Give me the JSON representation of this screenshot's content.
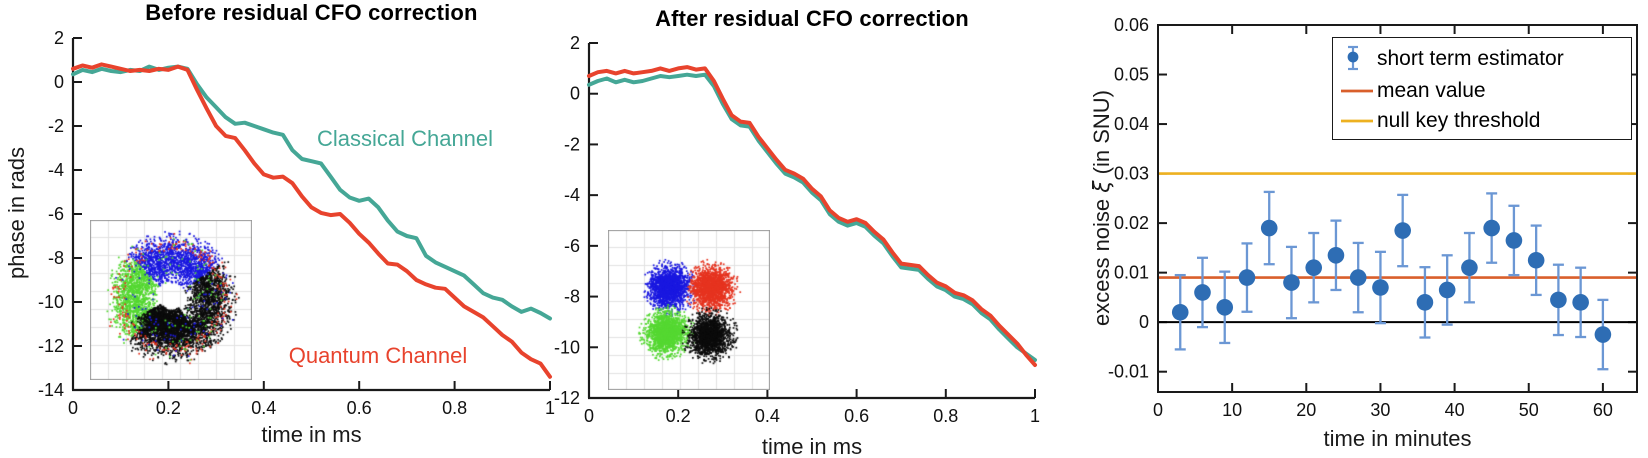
{
  "figure": {
    "background": "#ffffff"
  },
  "colors": {
    "classical_teal": "#45a796",
    "quantum_red": "#e8432d",
    "marker_blue": "#2e6db4",
    "errorbar_blue": "#6b97d4",
    "mean_orange": "#d95f2b",
    "threshold_yellow": "#edb120",
    "zero_line": "#000000",
    "axis": "#1a1a1a"
  },
  "chart_data": [
    {
      "id": "before-cfo",
      "type": "line",
      "title": "Before residual CFO correction",
      "xlabel": "time in ms",
      "ylabel": "phase in rads",
      "xlim": [
        0,
        1
      ],
      "ylim": [
        -14,
        2
      ],
      "xticks": [
        0,
        0.2,
        0.4,
        0.6,
        0.8,
        1
      ],
      "yticks": [
        2,
        0,
        -2,
        -4,
        -6,
        -8,
        -10,
        -12,
        -14
      ],
      "grid": false,
      "x": [
        0,
        0.02,
        0.04,
        0.06,
        0.08,
        0.1,
        0.12,
        0.14,
        0.16,
        0.18,
        0.2,
        0.22,
        0.24,
        0.26,
        0.28,
        0.3,
        0.32,
        0.34,
        0.36,
        0.38,
        0.4,
        0.42,
        0.44,
        0.46,
        0.48,
        0.5,
        0.52,
        0.54,
        0.56,
        0.58,
        0.6,
        0.62,
        0.64,
        0.66,
        0.68,
        0.7,
        0.72,
        0.74,
        0.76,
        0.78,
        0.8,
        0.82,
        0.84,
        0.86,
        0.88,
        0.9,
        0.92,
        0.94,
        0.96,
        0.98,
        1
      ],
      "series": [
        {
          "name": "Classical Channel",
          "color": "#45a796",
          "y": [
            0.35,
            0.55,
            0.45,
            0.6,
            0.5,
            0.45,
            0.55,
            0.5,
            0.7,
            0.55,
            0.65,
            0.7,
            0.6,
            -0.1,
            -0.7,
            -1.15,
            -1.6,
            -1.9,
            -1.85,
            -2.0,
            -2.15,
            -2.3,
            -2.4,
            -3.1,
            -3.5,
            -3.6,
            -3.7,
            -4.3,
            -4.9,
            -5.25,
            -5.4,
            -5.3,
            -5.7,
            -6.3,
            -6.8,
            -7.0,
            -7.1,
            -7.9,
            -8.2,
            -8.4,
            -8.6,
            -8.8,
            -9.2,
            -9.6,
            -9.8,
            -9.9,
            -10.2,
            -10.45,
            -10.3,
            -10.5,
            -10.75
          ]
        },
        {
          "name": "Quantum Channel",
          "color": "#e8432d",
          "y": [
            0.6,
            0.75,
            0.65,
            0.8,
            0.7,
            0.6,
            0.5,
            0.55,
            0.5,
            0.6,
            0.55,
            0.7,
            0.55,
            -0.35,
            -1.2,
            -2.0,
            -2.45,
            -2.55,
            -3.1,
            -3.7,
            -4.2,
            -4.35,
            -4.3,
            -4.6,
            -5.2,
            -5.7,
            -5.95,
            -6.05,
            -6.0,
            -6.4,
            -6.9,
            -7.3,
            -7.8,
            -8.25,
            -8.3,
            -8.6,
            -9.0,
            -9.2,
            -9.35,
            -9.4,
            -9.8,
            -10.2,
            -10.45,
            -10.7,
            -11.1,
            -11.5,
            -11.8,
            -12.3,
            -12.6,
            -12.8,
            -13.4
          ]
        }
      ],
      "annotations": [
        {
          "text": "Classical Channel",
          "color": "#45a796"
        },
        {
          "text": "Quantum Channel",
          "color": "#e8432d"
        }
      ],
      "inset": {
        "type": "constellation-ring-swirl",
        "point_colors": {
          "blue": "#1a18e0",
          "red": "#e63420",
          "green": "#55d832",
          "black": "#0c0c0c"
        }
      }
    },
    {
      "id": "after-cfo",
      "type": "line",
      "title": "After residual CFO correction",
      "xlabel": "time in ms",
      "ylabel": "",
      "xlim": [
        0,
        1
      ],
      "ylim": [
        -12,
        2
      ],
      "xticks": [
        0,
        0.2,
        0.4,
        0.6,
        0.8,
        1
      ],
      "yticks": [
        2,
        0,
        -2,
        -4,
        -6,
        -8,
        -10,
        -12
      ],
      "grid": false,
      "x": [
        0,
        0.02,
        0.04,
        0.06,
        0.08,
        0.1,
        0.12,
        0.14,
        0.16,
        0.18,
        0.2,
        0.22,
        0.24,
        0.26,
        0.28,
        0.3,
        0.32,
        0.34,
        0.36,
        0.38,
        0.4,
        0.42,
        0.44,
        0.46,
        0.48,
        0.5,
        0.52,
        0.54,
        0.56,
        0.58,
        0.6,
        0.62,
        0.64,
        0.66,
        0.68,
        0.7,
        0.72,
        0.74,
        0.76,
        0.78,
        0.8,
        0.82,
        0.84,
        0.86,
        0.88,
        0.9,
        0.92,
        0.94,
        0.96,
        0.98,
        1
      ],
      "series": [
        {
          "name": "Classical Channel",
          "color": "#45a796",
          "y": [
            0.35,
            0.5,
            0.6,
            0.45,
            0.55,
            0.45,
            0.5,
            0.6,
            0.7,
            0.65,
            0.7,
            0.75,
            0.7,
            0.75,
            0.3,
            -0.4,
            -1.0,
            -1.25,
            -1.3,
            -1.85,
            -2.3,
            -2.75,
            -3.15,
            -3.3,
            -3.5,
            -3.9,
            -4.2,
            -4.75,
            -5.05,
            -5.2,
            -5.1,
            -5.25,
            -5.6,
            -5.9,
            -6.4,
            -6.85,
            -6.9,
            -6.95,
            -7.3,
            -7.6,
            -7.75,
            -8.0,
            -8.1,
            -8.3,
            -8.65,
            -8.9,
            -9.3,
            -9.65,
            -10.0,
            -10.25,
            -10.5
          ]
        },
        {
          "name": "Quantum Channel",
          "color": "#e8432d",
          "y": [
            0.7,
            0.85,
            0.9,
            0.8,
            0.9,
            0.8,
            0.85,
            0.9,
            1.0,
            0.9,
            1.0,
            1.05,
            0.95,
            1.0,
            0.5,
            -0.2,
            -0.85,
            -1.1,
            -1.15,
            -1.7,
            -2.15,
            -2.6,
            -3.0,
            -3.15,
            -3.35,
            -3.75,
            -4.05,
            -4.6,
            -4.9,
            -5.05,
            -4.95,
            -5.1,
            -5.45,
            -5.75,
            -6.25,
            -6.7,
            -6.75,
            -6.8,
            -7.15,
            -7.45,
            -7.6,
            -7.85,
            -7.95,
            -8.15,
            -8.5,
            -8.75,
            -9.15,
            -9.5,
            -9.85,
            -10.3,
            -10.7
          ]
        }
      ],
      "annotations": [],
      "inset": {
        "type": "constellation-qpsk",
        "point_colors": {
          "blue": "#1a18e0",
          "red": "#e63420",
          "green": "#55d832",
          "black": "#0c0c0c"
        }
      }
    },
    {
      "id": "excess-noise",
      "type": "scatter-errorbar",
      "title": "",
      "xlabel": "time in minutes",
      "ylabel": "excess noise ξ (in SNU)",
      "ylabel_parts": {
        "pre": "excess noise ",
        "xi": "ξ",
        "post": " (in SNU)"
      },
      "xlim": [
        0,
        64.6
      ],
      "ylim": [
        -0.0141,
        0.06
      ],
      "xticks": [
        0,
        10,
        20,
        30,
        40,
        50,
        60
      ],
      "yticks": [
        -0.01,
        0,
        0.01,
        0.02,
        0.03,
        0.04,
        0.05,
        0.06
      ],
      "grid": false,
      "box": true,
      "points": {
        "x": [
          3,
          6,
          9,
          12,
          15,
          18,
          21,
          24,
          27,
          30,
          33,
          36,
          39,
          42,
          45,
          48,
          51,
          54,
          57,
          60
        ],
        "y": [
          0.002,
          0.006,
          0.003,
          0.009,
          0.019,
          0.008,
          0.011,
          0.0135,
          0.009,
          0.007,
          0.0185,
          0.004,
          0.0065,
          0.011,
          0.019,
          0.0165,
          0.0125,
          0.0045,
          0.004,
          -0.0025
        ],
        "yerr": [
          0.0075,
          0.007,
          0.0072,
          0.0069,
          0.0073,
          0.0072,
          0.007,
          0.007,
          0.007,
          0.0072,
          0.0072,
          0.0071,
          0.007,
          0.007,
          0.007,
          0.007,
          0.007,
          0.0071,
          0.007,
          0.007
        ]
      },
      "hlines": [
        {
          "name": "null key threshold",
          "y": 0.03,
          "color": "#edb120",
          "width": 2.6
        },
        {
          "name": "mean value",
          "y": 0.009,
          "color": "#d95f2b",
          "width": 2.6
        },
        {
          "name": "zero line",
          "y": 0,
          "color": "#000000",
          "width": 2.0
        }
      ],
      "legend": [
        {
          "label": "short term estimator",
          "type": "errorbar-marker",
          "marker_color": "#2e6db4",
          "bar_color": "#6b97d4"
        },
        {
          "label": "mean value",
          "type": "line",
          "color": "#d95f2b"
        },
        {
          "label": "null key threshold",
          "type": "line",
          "color": "#edb120"
        }
      ],
      "legend_position": "upper right"
    }
  ]
}
